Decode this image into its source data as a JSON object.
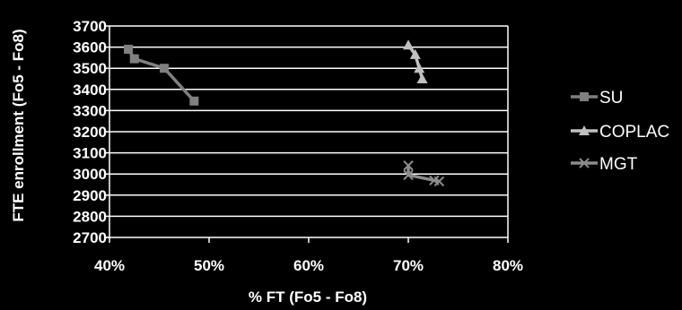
{
  "chart_data": {
    "type": "scatter",
    "xlabel": "% FT (Fo5 - Fo8)",
    "ylabel": "FTE enrollment (Fo5 - Fo8)",
    "xlim": [
      0.4,
      0.8
    ],
    "ylim": [
      2700,
      3700
    ],
    "x_ticks": [
      "40%",
      "50%",
      "60%",
      "70%",
      "80%"
    ],
    "y_ticks": [
      "2700",
      "2800",
      "2900",
      "3000",
      "3100",
      "3200",
      "3300",
      "3400",
      "3500",
      "3600",
      "3700"
    ],
    "grid": true,
    "legend_position": "right",
    "series": [
      {
        "name": "SU",
        "marker": "square",
        "color": "#808080",
        "points": [
          [
            0.419,
            3590
          ],
          [
            0.425,
            3545
          ],
          [
            0.455,
            3500
          ],
          [
            0.485,
            3345
          ]
        ]
      },
      {
        "name": "COPLAC",
        "marker": "triangle",
        "color": "#c0c0c0",
        "points": [
          [
            0.7,
            3610
          ],
          [
            0.707,
            3565
          ],
          [
            0.711,
            3500
          ],
          [
            0.714,
            3450
          ]
        ]
      },
      {
        "name": "MGT",
        "marker": "x",
        "color": "#8c8c8c",
        "points": [
          [
            0.7,
            3040
          ],
          [
            0.7,
            2995
          ],
          [
            0.726,
            2970
          ],
          [
            0.731,
            2965
          ]
        ]
      }
    ]
  }
}
